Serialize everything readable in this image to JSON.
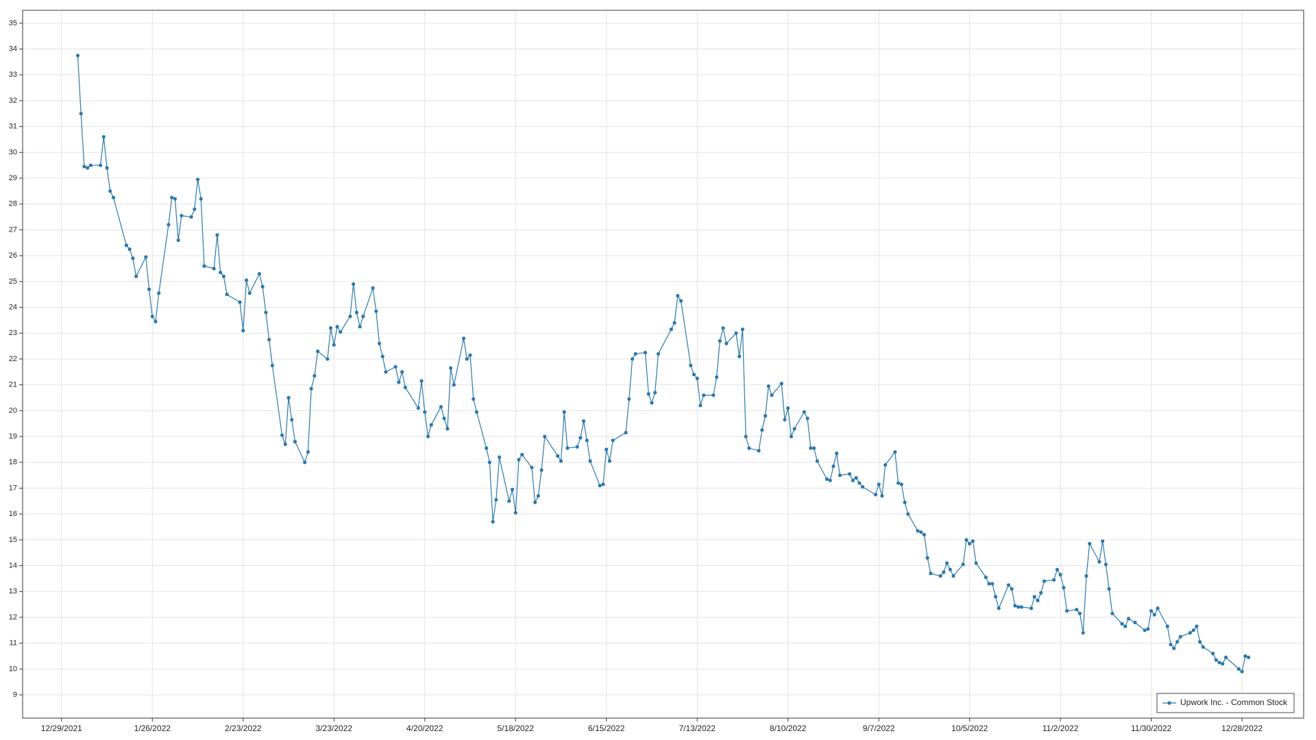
{
  "chart_data": {
    "type": "line",
    "x": [
      "2022-01-03",
      "2022-01-04",
      "2022-01-05",
      "2022-01-06",
      "2022-01-07",
      "2022-01-10",
      "2022-01-11",
      "2022-01-12",
      "2022-01-13",
      "2022-01-14",
      "2022-01-18",
      "2022-01-19",
      "2022-01-20",
      "2022-01-21",
      "2022-01-24",
      "2022-01-25",
      "2022-01-26",
      "2022-01-27",
      "2022-01-28",
      "2022-01-31",
      "2022-02-01",
      "2022-02-02",
      "2022-02-03",
      "2022-02-04",
      "2022-02-07",
      "2022-02-08",
      "2022-02-09",
      "2022-02-10",
      "2022-02-11",
      "2022-02-14",
      "2022-02-15",
      "2022-02-16",
      "2022-02-17",
      "2022-02-18",
      "2022-02-22",
      "2022-02-23",
      "2022-02-24",
      "2022-02-25",
      "2022-02-28",
      "2022-03-01",
      "2022-03-02",
      "2022-03-03",
      "2022-03-04",
      "2022-03-07",
      "2022-03-08",
      "2022-03-09",
      "2022-03-10",
      "2022-03-11",
      "2022-03-14",
      "2022-03-15",
      "2022-03-16",
      "2022-03-17",
      "2022-03-18",
      "2022-03-21",
      "2022-03-22",
      "2022-03-23",
      "2022-03-24",
      "2022-03-25",
      "2022-03-28",
      "2022-03-29",
      "2022-03-30",
      "2022-03-31",
      "2022-04-01",
      "2022-04-04",
      "2022-04-05",
      "2022-04-06",
      "2022-04-07",
      "2022-04-08",
      "2022-04-11",
      "2022-04-12",
      "2022-04-13",
      "2022-04-14",
      "2022-04-18",
      "2022-04-19",
      "2022-04-20",
      "2022-04-21",
      "2022-04-22",
      "2022-04-25",
      "2022-04-26",
      "2022-04-27",
      "2022-04-28",
      "2022-04-29",
      "2022-05-02",
      "2022-05-03",
      "2022-05-04",
      "2022-05-05",
      "2022-05-06",
      "2022-05-09",
      "2022-05-10",
      "2022-05-11",
      "2022-05-12",
      "2022-05-13",
      "2022-05-16",
      "2022-05-17",
      "2022-05-18",
      "2022-05-19",
      "2022-05-20",
      "2022-05-23",
      "2022-05-24",
      "2022-05-25",
      "2022-05-26",
      "2022-05-27",
      "2022-05-31",
      "2022-06-01",
      "2022-06-02",
      "2022-06-03",
      "2022-06-06",
      "2022-06-07",
      "2022-06-08",
      "2022-06-09",
      "2022-06-10",
      "2022-06-13",
      "2022-06-14",
      "2022-06-15",
      "2022-06-16",
      "2022-06-17",
      "2022-06-21",
      "2022-06-22",
      "2022-06-23",
      "2022-06-24",
      "2022-06-27",
      "2022-06-28",
      "2022-06-29",
      "2022-06-30",
      "2022-07-01",
      "2022-07-05",
      "2022-07-06",
      "2022-07-07",
      "2022-07-08",
      "2022-07-11",
      "2022-07-12",
      "2022-07-13",
      "2022-07-14",
      "2022-07-15",
      "2022-07-18",
      "2022-07-19",
      "2022-07-20",
      "2022-07-21",
      "2022-07-22",
      "2022-07-25",
      "2022-07-26",
      "2022-07-27",
      "2022-07-28",
      "2022-07-29",
      "2022-08-01",
      "2022-08-02",
      "2022-08-03",
      "2022-08-04",
      "2022-08-05",
      "2022-08-08",
      "2022-08-09",
      "2022-08-10",
      "2022-08-11",
      "2022-08-12",
      "2022-08-15",
      "2022-08-16",
      "2022-08-17",
      "2022-08-18",
      "2022-08-19",
      "2022-08-22",
      "2022-08-23",
      "2022-08-24",
      "2022-08-25",
      "2022-08-26",
      "2022-08-29",
      "2022-08-30",
      "2022-08-31",
      "2022-09-01",
      "2022-09-02",
      "2022-09-06",
      "2022-09-07",
      "2022-09-08",
      "2022-09-09",
      "2022-09-12",
      "2022-09-13",
      "2022-09-14",
      "2022-09-15",
      "2022-09-16",
      "2022-09-19",
      "2022-09-20",
      "2022-09-21",
      "2022-09-22",
      "2022-09-23",
      "2022-09-26",
      "2022-09-27",
      "2022-09-28",
      "2022-09-29",
      "2022-09-30",
      "2022-10-03",
      "2022-10-04",
      "2022-10-05",
      "2022-10-06",
      "2022-10-07",
      "2022-10-10",
      "2022-10-11",
      "2022-10-12",
      "2022-10-13",
      "2022-10-14",
      "2022-10-17",
      "2022-10-18",
      "2022-10-19",
      "2022-10-20",
      "2022-10-21",
      "2022-10-24",
      "2022-10-25",
      "2022-10-26",
      "2022-10-27",
      "2022-10-28",
      "2022-10-31",
      "2022-11-01",
      "2022-11-02",
      "2022-11-03",
      "2022-11-04",
      "2022-11-07",
      "2022-11-08",
      "2022-11-09",
      "2022-11-10",
      "2022-11-11",
      "2022-11-14",
      "2022-11-15",
      "2022-11-16",
      "2022-11-17",
      "2022-11-18",
      "2022-11-21",
      "2022-11-22",
      "2022-11-23",
      "2022-11-25",
      "2022-11-28",
      "2022-11-29",
      "2022-11-30",
      "2022-12-01",
      "2022-12-02",
      "2022-12-05",
      "2022-12-06",
      "2022-12-07",
      "2022-12-08",
      "2022-12-09",
      "2022-12-12",
      "2022-12-13",
      "2022-12-14",
      "2022-12-15",
      "2022-12-16",
      "2022-12-19",
      "2022-12-20",
      "2022-12-21",
      "2022-12-22",
      "2022-12-23",
      "2022-12-27",
      "2022-12-28",
      "2022-12-29",
      "2022-12-30"
    ],
    "series": [
      {
        "name": "Upwork Inc. - Common Stock",
        "color": "#2878b0",
        "values": [
          33.75,
          31.5,
          29.45,
          29.4,
          29.5,
          29.5,
          30.6,
          29.4,
          28.5,
          28.25,
          26.4,
          26.25,
          25.9,
          25.2,
          25.95,
          24.7,
          23.65,
          23.45,
          24.55,
          27.2,
          28.25,
          28.2,
          26.6,
          27.55,
          27.5,
          27.8,
          28.95,
          28.2,
          25.6,
          25.5,
          26.8,
          25.35,
          25.2,
          24.5,
          24.2,
          23.1,
          25.05,
          24.55,
          25.3,
          24.8,
          23.8,
          22.75,
          21.75,
          19.05,
          18.7,
          20.5,
          19.65,
          18.8,
          18.0,
          18.4,
          20.85,
          21.35,
          22.3,
          22.0,
          23.2,
          22.55,
          23.25,
          23.05,
          23.65,
          24.9,
          23.8,
          23.25,
          23.65,
          24.75,
          23.85,
          22.6,
          22.1,
          21.5,
          21.7,
          21.1,
          21.5,
          20.9,
          20.1,
          21.15,
          19.95,
          19.0,
          19.45,
          20.15,
          19.7,
          19.3,
          21.65,
          21.0,
          22.8,
          22.0,
          22.15,
          20.45,
          19.95,
          18.55,
          18.0,
          15.7,
          16.55,
          18.2,
          16.5,
          16.95,
          16.05,
          18.1,
          18.3,
          17.8,
          16.45,
          16.7,
          17.7,
          19.0,
          18.25,
          18.05,
          19.95,
          18.55,
          18.6,
          18.95,
          19.6,
          18.85,
          18.05,
          17.1,
          17.15,
          18.5,
          18.05,
          18.85,
          19.15,
          20.45,
          22.0,
          22.2,
          22.25,
          20.65,
          20.3,
          20.7,
          22.2,
          23.15,
          23.4,
          24.45,
          24.25,
          21.75,
          21.4,
          21.25,
          20.2,
          20.6,
          20.6,
          21.3,
          22.7,
          23.2,
          22.6,
          23.0,
          22.1,
          23.15,
          19.0,
          18.55,
          18.45,
          19.25,
          19.8,
          20.95,
          20.6,
          21.05,
          19.65,
          20.1,
          19.0,
          19.3,
          19.95,
          19.7,
          18.55,
          18.55,
          18.05,
          17.35,
          17.3,
          17.85,
          18.35,
          17.5,
          17.55,
          17.3,
          17.4,
          17.2,
          17.05,
          16.75,
          17.15,
          16.7,
          17.9,
          18.4,
          17.2,
          17.15,
          16.45,
          16.0,
          15.35,
          15.3,
          15.2,
          14.3,
          13.7,
          13.6,
          13.75,
          14.1,
          13.85,
          13.6,
          14.05,
          15.0,
          14.85,
          14.95,
          14.1,
          13.55,
          13.3,
          13.3,
          12.8,
          12.35,
          13.25,
          13.1,
          12.45,
          12.4,
          12.4,
          12.35,
          12.8,
          12.65,
          12.95,
          13.4,
          13.45,
          13.85,
          13.65,
          13.15,
          12.25,
          12.3,
          12.15,
          11.4,
          13.6,
          14.85,
          14.15,
          14.95,
          14.05,
          13.1,
          12.15,
          11.75,
          11.65,
          11.95,
          11.8,
          11.5,
          11.55,
          12.25,
          12.1,
          12.35,
          11.65,
          10.95,
          10.8,
          11.05,
          11.25,
          11.4,
          11.5,
          11.65,
          11.05,
          10.85,
          10.6,
          10.35,
          10.25,
          10.2,
          10.45,
          10.0,
          9.9,
          10.5,
          10.45
        ]
      }
    ],
    "xlim": [
      "2021-12-17",
      "2023-01-16"
    ],
    "xticks": [
      {
        "value": "2021-12-29",
        "label": "12/29/2021"
      },
      {
        "value": "2022-01-26",
        "label": "1/26/2022"
      },
      {
        "value": "2022-02-23",
        "label": "2/23/2022"
      },
      {
        "value": "2022-03-23",
        "label": "3/23/2022"
      },
      {
        "value": "2022-04-20",
        "label": "4/20/2022"
      },
      {
        "value": "2022-05-18",
        "label": "5/18/2022"
      },
      {
        "value": "2022-06-15",
        "label": "6/15/2022"
      },
      {
        "value": "2022-07-13",
        "label": "7/13/2022"
      },
      {
        "value": "2022-08-10",
        "label": "8/10/2022"
      },
      {
        "value": "2022-09-07",
        "label": "9/7/2022"
      },
      {
        "value": "2022-10-05",
        "label": "10/5/2022"
      },
      {
        "value": "2022-11-02",
        "label": "11/2/2022"
      },
      {
        "value": "2022-11-30",
        "label": "11/30/2022"
      },
      {
        "value": "2022-12-28",
        "label": "12/28/2022"
      }
    ],
    "ylim": [
      8.1,
      35.5
    ],
    "yticks": [
      9,
      10,
      11,
      12,
      13,
      14,
      15,
      16,
      17,
      18,
      19,
      20,
      21,
      22,
      23,
      24,
      25,
      26,
      27,
      28,
      29,
      30,
      31,
      32,
      33,
      34,
      35
    ],
    "grid": true,
    "legend": "lower right"
  }
}
